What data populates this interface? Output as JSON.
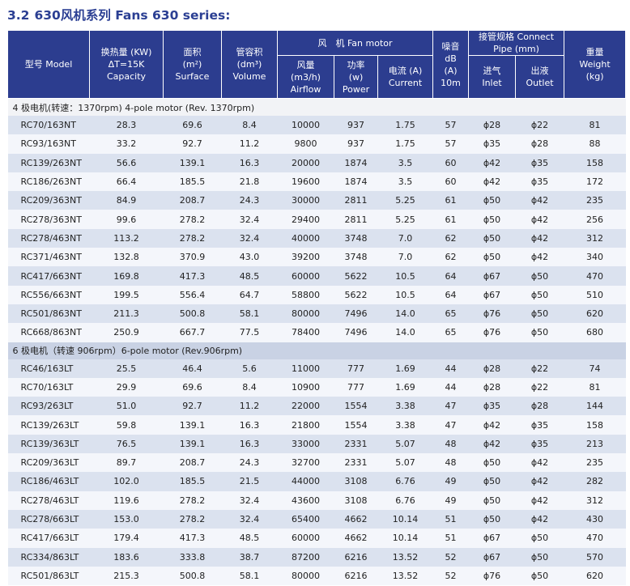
{
  "title": {
    "number": "3.2",
    "text": "630风机系列 Fans 630 series:"
  },
  "headers": {
    "model": "型号 Model",
    "capacity": [
      "换热量 (KW)",
      "ΔT=15K",
      "Capacity"
    ],
    "surface": [
      "面积",
      "(m²)",
      "Surface"
    ],
    "volume": [
      "管容积",
      "(dm³)",
      "Volume"
    ],
    "fan_motor": "风　机 Fan motor",
    "airflow": [
      "风量",
      "(m3/h)",
      "Airflow"
    ],
    "power": [
      "功率",
      "(w)",
      "Power"
    ],
    "current": [
      "电流 (A)",
      "Current"
    ],
    "noise": [
      "噪音",
      "dB",
      "(A)",
      "10m"
    ],
    "connect": [
      "接管规格 Connect",
      "Pipe (mm)"
    ],
    "inlet": [
      "进气",
      "Inlet"
    ],
    "outlet": [
      "出液",
      "Outlet"
    ],
    "weight": [
      "重量",
      "Weight",
      "(kg)"
    ]
  },
  "sections": [
    {
      "label": "4 极电机(转速：1370rpm)   4-pole motor  (Rev. 1370rpm)",
      "rows": [
        [
          "RC70/163NT",
          "28.3",
          "69.6",
          "8.4",
          "10000",
          "937",
          "1.75",
          "57",
          "ϕ28",
          "ϕ22",
          "81"
        ],
        [
          "RC93/163NT",
          "33.2",
          "92.7",
          "11.2",
          "9800",
          "937",
          "1.75",
          "57",
          "ϕ35",
          "ϕ28",
          "88"
        ],
        [
          "RC139/263NT",
          "56.6",
          "139.1",
          "16.3",
          "20000",
          "1874",
          "3.5",
          "60",
          "ϕ42",
          "ϕ35",
          "158"
        ],
        [
          "RC186/263NT",
          "66.4",
          "185.5",
          "21.8",
          "19600",
          "1874",
          "3.5",
          "60",
          "ϕ42",
          "ϕ35",
          "172"
        ],
        [
          "RC209/363NT",
          "84.9",
          "208.7",
          "24.3",
          "30000",
          "2811",
          "5.25",
          "61",
          "ϕ50",
          "ϕ42",
          "235"
        ],
        [
          "RC278/363NT",
          "99.6",
          "278.2",
          "32.4",
          "29400",
          "2811",
          "5.25",
          "61",
          "ϕ50",
          "ϕ42",
          "256"
        ],
        [
          "RC278/463NT",
          "113.2",
          "278.2",
          "32.4",
          "40000",
          "3748",
          "7.0",
          "62",
          "ϕ50",
          "ϕ42",
          "312"
        ],
        [
          "RC371/463NT",
          "132.8",
          "370.9",
          "43.0",
          "39200",
          "3748",
          "7.0",
          "62",
          "ϕ50",
          "ϕ42",
          "340"
        ],
        [
          "RC417/663NT",
          "169.8",
          "417.3",
          "48.5",
          "60000",
          "5622",
          "10.5",
          "64",
          "ϕ67",
          "ϕ50",
          "470"
        ],
        [
          "RC556/663NT",
          "199.5",
          "556.4",
          "64.7",
          "58800",
          "5622",
          "10.5",
          "64",
          "ϕ67",
          "ϕ50",
          "510"
        ],
        [
          "RC501/863NT",
          "211.3",
          "500.8",
          "58.1",
          "80000",
          "7496",
          "14.0",
          "65",
          "ϕ76",
          "ϕ50",
          "620"
        ],
        [
          "RC668/863NT",
          "250.9",
          "667.7",
          "77.5",
          "78400",
          "7496",
          "14.0",
          "65",
          "ϕ76",
          "ϕ50",
          "680"
        ]
      ]
    },
    {
      "label": "6 极电机（转速 906rpm）6-pole motor  (Rev.906rpm)",
      "rows": [
        [
          "RC46/163LT",
          "25.5",
          "46.4",
          "5.6",
          "11000",
          "777",
          "1.69",
          "44",
          "ϕ28",
          "ϕ22",
          "74"
        ],
        [
          "RC70/163LT",
          "29.9",
          "69.6",
          "8.4",
          "10900",
          "777",
          "1.69",
          "44",
          "ϕ28",
          "ϕ22",
          "81"
        ],
        [
          "RC93/263LT",
          "51.0",
          "92.7",
          "11.2",
          "22000",
          "1554",
          "3.38",
          "47",
          "ϕ35",
          "ϕ28",
          "144"
        ],
        [
          "RC139/263LT",
          "59.8",
          "139.1",
          "16.3",
          "21800",
          "1554",
          "3.38",
          "47",
          "ϕ42",
          "ϕ35",
          "158"
        ],
        [
          "RC139/363LT",
          "76.5",
          "139.1",
          "16.3",
          "33000",
          "2331",
          "5.07",
          "48",
          "ϕ42",
          "ϕ35",
          "213"
        ],
        [
          "RC209/363LT",
          "89.7",
          "208.7",
          "24.3",
          "32700",
          "2331",
          "5.07",
          "48",
          "ϕ50",
          "ϕ42",
          "235"
        ],
        [
          "RC186/463LT",
          "102.0",
          "185.5",
          "21.5",
          "44000",
          "3108",
          "6.76",
          "49",
          "ϕ50",
          "ϕ42",
          "282"
        ],
        [
          "RC278/463LT",
          "119.6",
          "278.2",
          "32.4",
          "43600",
          "3108",
          "6.76",
          "49",
          "ϕ50",
          "ϕ42",
          "312"
        ],
        [
          "RC278/663LT",
          "153.0",
          "278.2",
          "32.4",
          "65400",
          "4662",
          "10.14",
          "51",
          "ϕ50",
          "ϕ42",
          "430"
        ],
        [
          "RC417/663LT",
          "179.4",
          "417.3",
          "48.5",
          "60000",
          "4662",
          "10.14",
          "51",
          "ϕ67",
          "ϕ50",
          "470"
        ],
        [
          "RC334/863LT",
          "183.6",
          "333.8",
          "38.7",
          "87200",
          "6216",
          "13.52",
          "52",
          "ϕ67",
          "ϕ50",
          "570"
        ],
        [
          "RC501/863LT",
          "215.3",
          "500.8",
          "58.1",
          "80000",
          "6216",
          "13.52",
          "52",
          "ϕ76",
          "ϕ50",
          "620"
        ]
      ]
    }
  ],
  "colors": {
    "header_bg": "#2c3d8f",
    "title": "#2b3f93",
    "row_odd": "#dbe2ef",
    "row_even": "#f4f6fb"
  }
}
